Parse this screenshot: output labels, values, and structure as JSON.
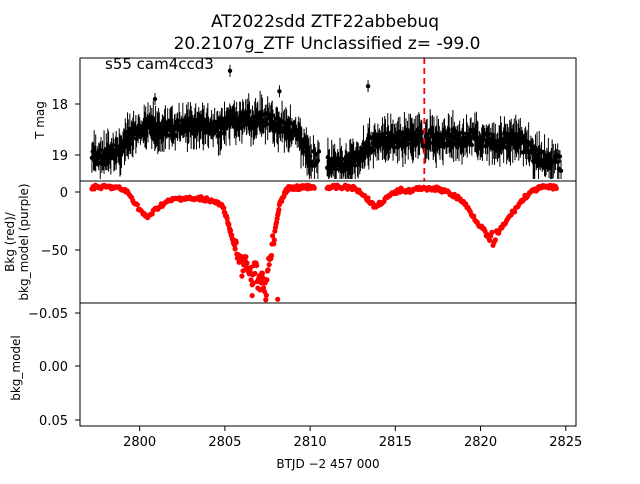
{
  "title_line1": "AT2022sdd  ZTF22abbebuq",
  "title_line2": "20.2107g_ZTF Unclassified z= -99.0",
  "chart_data": [
    {
      "type": "scatter",
      "panel": "top",
      "ylabel": "T mag",
      "annotation": "s55 cam4ccd3",
      "xlim": [
        2796.5,
        2825.6
      ],
      "ylim": [
        19.5,
        17.1
      ],
      "y_inverted": true,
      "yticks": [
        "18",
        "19"
      ],
      "marker_color": "#000000",
      "error_bars": true,
      "vline": {
        "x": 2816.7,
        "color": "#ff0000",
        "style": "dashed"
      },
      "series": [
        {
          "x": [
            2797.2,
            2797.6,
            2798.0,
            2798.4,
            2798.8,
            2799.2,
            2799.6,
            2800.0,
            2800.4,
            2800.8,
            2801.2,
            2801.6,
            2802.0,
            2802.4,
            2802.8,
            2803.2,
            2803.6,
            2804.0,
            2804.4,
            2804.8,
            2805.2,
            2805.6,
            2806.0,
            2806.4,
            2806.8,
            2807.2,
            2807.6,
            2808.0,
            2808.4,
            2808.8,
            2809.2,
            2809.6,
            2810.0
          ],
          "y": [
            19.05,
            19.0,
            19.05,
            18.95,
            18.9,
            18.75,
            18.6,
            18.55,
            18.5,
            18.45,
            18.5,
            18.45,
            18.5,
            18.45,
            18.4,
            18.45,
            18.4,
            18.45,
            18.5,
            18.45,
            18.4,
            18.35,
            18.35,
            18.3,
            18.35,
            18.3,
            18.35,
            18.4,
            18.4,
            18.5,
            18.6,
            18.8,
            19.05
          ]
        },
        {
          "x": [
            2811.0,
            2811.4,
            2811.8,
            2812.2,
            2812.6,
            2813.0,
            2813.4,
            2813.8,
            2814.2,
            2814.6,
            2815.0,
            2815.4,
            2815.8,
            2816.2,
            2816.6,
            2817.0,
            2817.4,
            2817.8,
            2818.2,
            2818.6,
            2819.0,
            2819.4,
            2819.8,
            2820.2,
            2820.6,
            2821.0,
            2821.4,
            2821.8,
            2822.2,
            2822.6,
            2823.0,
            2823.4,
            2823.8,
            2824.2
          ],
          "y": [
            19.15,
            19.2,
            19.15,
            19.2,
            19.1,
            18.95,
            18.8,
            18.75,
            18.75,
            18.7,
            18.7,
            18.7,
            18.65,
            18.65,
            18.7,
            18.65,
            18.7,
            18.7,
            18.65,
            18.65,
            18.7,
            18.65,
            18.65,
            18.7,
            18.7,
            18.75,
            18.7,
            18.7,
            18.75,
            18.8,
            18.95,
            19.05,
            19.1,
            19.15
          ]
        }
      ],
      "outliers": [
        {
          "x": 2805.3,
          "y": 17.35
        },
        {
          "x": 2813.4,
          "y": 17.65
        },
        {
          "x": 2808.2,
          "y": 17.75
        },
        {
          "x": 2800.9,
          "y": 17.9
        }
      ]
    },
    {
      "type": "scatter",
      "panel": "middle",
      "ylabel": "Bkg (red)/\nbkg_model (purple)",
      "xlim": [
        2796.5,
        2825.6
      ],
      "ylim": [
        -94,
        5
      ],
      "yticks": [
        "0",
        "−50"
      ],
      "marker_color": "#ff0000",
      "series": [
        {
          "name": "Bkg",
          "x": [
            2797.2,
            2797.6,
            2798.0,
            2798.4,
            2798.8,
            2799.2,
            2799.6,
            2800.0,
            2800.4,
            2800.8,
            2801.2,
            2801.6,
            2802.0,
            2802.4,
            2802.8,
            2803.2,
            2803.6,
            2804.0,
            2804.4,
            2804.8,
            2805.0,
            2805.2,
            2805.4,
            2805.6,
            2805.8,
            2806.0,
            2806.2,
            2806.4,
            2806.6,
            2806.8,
            2807.0,
            2807.2,
            2807.4,
            2807.6,
            2807.8,
            2808.0,
            2808.2,
            2808.4,
            2808.6,
            2808.8,
            2809.0,
            2809.2,
            2809.4,
            2809.6,
            2809.8,
            2810.0,
            2811.0,
            2811.4,
            2811.8,
            2812.2,
            2812.6,
            2813.0,
            2813.4,
            2813.8,
            2814.2,
            2814.6,
            2815.0,
            2815.4,
            2815.8,
            2816.2,
            2816.6,
            2817.0,
            2817.4,
            2817.8,
            2818.2,
            2818.6,
            2819.0,
            2819.4,
            2819.8,
            2820.2,
            2820.6,
            2821.0,
            2821.4,
            2821.8,
            2822.2,
            2822.6,
            2823.0,
            2823.4,
            2823.8,
            2824.2
          ],
          "y": [
            0,
            0,
            0,
            0,
            -1,
            -3,
            -10,
            -18,
            -25,
            -20,
            -15,
            -12,
            -10,
            -9,
            -9,
            -10,
            -9,
            -10,
            -12,
            -15,
            -20,
            -30,
            -40,
            -48,
            -55,
            -65,
            -60,
            -70,
            -75,
            -65,
            -80,
            -70,
            -85,
            -60,
            -45,
            -30,
            -15,
            -8,
            -3,
            0,
            -1,
            0,
            -1,
            0,
            0,
            0,
            0,
            0,
            0,
            0,
            -1,
            -4,
            -10,
            -16,
            -12,
            -8,
            -4,
            -2,
            -3,
            -2,
            0,
            -2,
            -1,
            -3,
            -5,
            -8,
            -12,
            -20,
            -28,
            -35,
            -45,
            -38,
            -30,
            -22,
            -15,
            -8,
            -4,
            -1,
            0,
            0
          ]
        }
      ],
      "outliers": [
        {
          "x": 2806.6,
          "y": -88
        },
        {
          "x": 2808.1,
          "y": -91
        },
        {
          "x": 2805.5,
          "y": -43
        }
      ]
    },
    {
      "type": "scatter",
      "panel": "bottom",
      "ylabel": "bkg_model",
      "xlabel": "BTJD −2 457 000",
      "xlim": [
        2796.5,
        2825.6
      ],
      "ylim": [
        0.055,
        -0.055
      ],
      "y_inverted": true,
      "yticks": [
        "−0.05",
        "0.00",
        "0.05"
      ],
      "xticks": [
        "2800",
        "2805",
        "2810",
        "2815",
        "2820",
        "2825"
      ],
      "series": []
    }
  ]
}
